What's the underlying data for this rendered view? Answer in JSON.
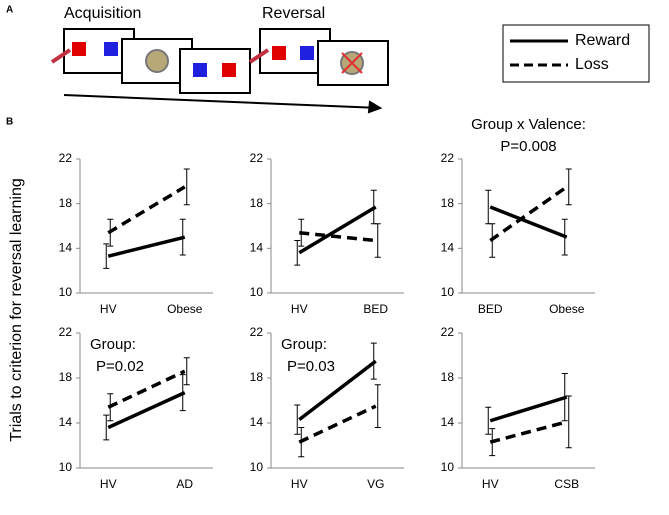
{
  "panel_a": {
    "label": "A",
    "acquisition": "Acquisition",
    "reversal": "Reversal"
  },
  "panel_b_label": "B",
  "y_axis_label": "Trials to criterion for reversal learning",
  "chart_data": [
    {
      "type": "line",
      "categories": [
        "HV",
        "Obese"
      ],
      "ylim": [
        10,
        22
      ],
      "yticks": [
        10,
        14,
        18,
        22
      ],
      "series": [
        {
          "name": "Reward",
          "color": "#000000",
          "style": "solid",
          "values": [
            13.3,
            15.0
          ],
          "errors": [
            1.1,
            1.6
          ]
        },
        {
          "name": "Loss",
          "color": "#000000",
          "style": "dashed",
          "values": [
            15.4,
            19.5
          ],
          "errors": [
            1.2,
            1.6
          ]
        }
      ]
    },
    {
      "type": "line",
      "categories": [
        "HV",
        "BED"
      ],
      "ylim": [
        10,
        22
      ],
      "yticks": [
        10,
        14,
        18,
        22
      ],
      "series": [
        {
          "name": "Reward",
          "color": "#000000",
          "style": "solid",
          "values": [
            13.6,
            17.7
          ],
          "errors": [
            1.1,
            1.5
          ]
        },
        {
          "name": "Loss",
          "color": "#000000",
          "style": "dashed",
          "values": [
            15.4,
            14.7
          ],
          "errors": [
            1.2,
            1.5
          ]
        }
      ]
    },
    {
      "type": "line",
      "categories": [
        "BED",
        "Obese"
      ],
      "ylim": [
        10,
        22
      ],
      "yticks": [
        10,
        14,
        18,
        22
      ],
      "annotation": [
        "Group x Valence:",
        "P=0.008"
      ],
      "series": [
        {
          "name": "Reward",
          "color": "#000000",
          "style": "solid",
          "values": [
            17.7,
            15.0
          ],
          "errors": [
            1.5,
            1.6
          ]
        },
        {
          "name": "Loss",
          "color": "#000000",
          "style": "dashed",
          "values": [
            14.7,
            19.5
          ],
          "errors": [
            1.5,
            1.6
          ]
        }
      ]
    },
    {
      "type": "line",
      "categories": [
        "HV",
        "AD"
      ],
      "ylim": [
        10,
        22
      ],
      "yticks": [
        10,
        14,
        18,
        22
      ],
      "annotation": [
        "Group:",
        "P=0.02"
      ],
      "series": [
        {
          "name": "Reward",
          "color": "#000000",
          "style": "solid",
          "values": [
            13.6,
            16.7
          ],
          "errors": [
            1.1,
            1.6
          ]
        },
        {
          "name": "Loss",
          "color": "#000000",
          "style": "dashed",
          "values": [
            15.4,
            18.6
          ],
          "errors": [
            1.2,
            1.2
          ]
        }
      ]
    },
    {
      "type": "line",
      "categories": [
        "HV",
        "VG"
      ],
      "ylim": [
        10,
        22
      ],
      "yticks": [
        10,
        14,
        18,
        22
      ],
      "annotation": [
        "Group:",
        "P=0.03"
      ],
      "series": [
        {
          "name": "Reward",
          "color": "#000000",
          "style": "solid",
          "values": [
            14.3,
            19.5
          ],
          "errors": [
            1.3,
            1.6
          ]
        },
        {
          "name": "Loss",
          "color": "#000000",
          "style": "dashed",
          "values": [
            12.3,
            15.5
          ],
          "errors": [
            1.3,
            1.9
          ]
        }
      ]
    },
    {
      "type": "line",
      "categories": [
        "HV",
        "CSB"
      ],
      "ylim": [
        10,
        22
      ],
      "yticks": [
        10,
        14,
        18,
        22
      ],
      "series": [
        {
          "name": "Reward",
          "color": "#000000",
          "style": "solid",
          "values": [
            14.2,
            16.3
          ],
          "errors": [
            1.2,
            2.1
          ]
        },
        {
          "name": "Loss",
          "color": "#000000",
          "style": "dashed",
          "values": [
            12.3,
            14.1
          ],
          "errors": [
            1.2,
            2.3
          ]
        }
      ]
    }
  ]
}
